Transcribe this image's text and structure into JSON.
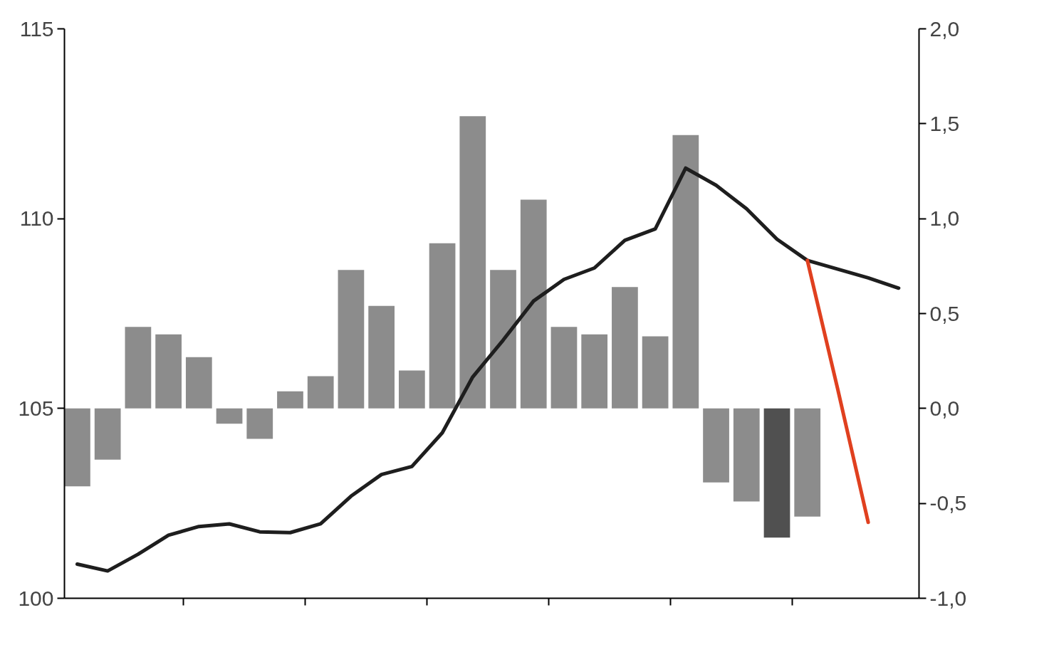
{
  "chart_data": {
    "type": "bar",
    "categories": [
      null,
      null,
      null,
      null,
      null,
      null,
      null,
      null,
      null,
      null,
      null,
      null,
      null,
      null,
      null,
      null,
      null,
      null,
      null,
      null,
      null,
      null,
      null,
      null,
      null,
      null,
      null,
      null
    ],
    "ylim": [
      100,
      115
    ],
    "yticks": [
      100,
      105,
      110,
      115
    ],
    "y2lim": [
      -1.0,
      2.0
    ],
    "y2ticks": [
      {
        "value": -1.0,
        "label": "-1,0"
      },
      {
        "value": -0.5,
        "label": "-0,5"
      },
      {
        "value": 0.0,
        "label": "0,0"
      },
      {
        "value": 0.5,
        "label": "0,5"
      },
      {
        "value": 1.0,
        "label": "1,0"
      },
      {
        "value": 1.5,
        "label": "1,5"
      },
      {
        "value": 2.0,
        "label": "2,0"
      }
    ],
    "tick_labels": "y",
    "grid": false,
    "series": [
      {
        "axis": "y2",
        "values": [
          -0.41,
          -0.27,
          0.43,
          0.39,
          0.27,
          -0.08,
          -0.16,
          0.09,
          0.17,
          0.73,
          0.54,
          0.2,
          0.87,
          1.54,
          0.73,
          1.1,
          0.43,
          0.39,
          0.64,
          0.38,
          1.44,
          -0.39,
          -0.49,
          -0.68,
          -0.57,
          null,
          null,
          null
        ],
        "colors": [
          "#8c8c8c",
          "#8c8c8c",
          "#8c8c8c",
          "#8c8c8c",
          "#8c8c8c",
          "#8c8c8c",
          "#8c8c8c",
          "#8c8c8c",
          "#8c8c8c",
          "#8c8c8c",
          "#8c8c8c",
          "#8c8c8c",
          "#8c8c8c",
          "#8c8c8c",
          "#8c8c8c",
          "#8c8c8c",
          "#8c8c8c",
          "#8c8c8c",
          "#8c8c8c",
          "#8c8c8c",
          "#8c8c8c",
          "#8c8c8c",
          "#8c8c8c",
          "#505050",
          "#8c8c8c",
          null,
          null,
          null
        ]
      },
      {
        "type": "line",
        "color": "#1e1e1e",
        "values": [
          100.9,
          100.72,
          101.16,
          101.66,
          101.89,
          101.96,
          101.75,
          101.73,
          101.96,
          102.69,
          103.26,
          103.47,
          104.36,
          105.83,
          106.8,
          107.83,
          108.4,
          108.7,
          109.43,
          109.73,
          111.33,
          110.88,
          110.26,
          109.46,
          108.9,
          108.67,
          108.44,
          108.17
        ]
      },
      {
        "type": "line",
        "color": "#e0401f",
        "values": [
          null,
          null,
          null,
          null,
          null,
          null,
          null,
          null,
          null,
          null,
          null,
          null,
          null,
          null,
          null,
          null,
          null,
          null,
          null,
          null,
          null,
          null,
          null,
          null,
          108.9,
          105.5,
          102.0,
          null
        ]
      }
    ]
  }
}
